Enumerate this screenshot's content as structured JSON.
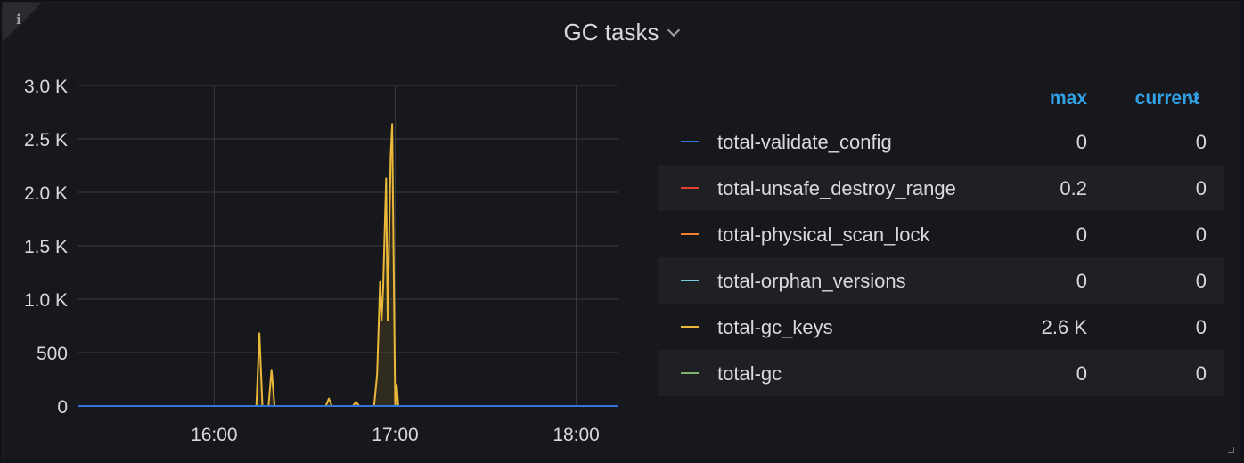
{
  "panel": {
    "title": "GC tasks",
    "info_icon": "info-icon",
    "title_menu_icon": "chevron-down-icon"
  },
  "legend": {
    "header_max": "max",
    "header_current": "current",
    "rows": [
      {
        "name": "total-validate_config",
        "max": "0",
        "current": "0",
        "color": "#3274d9"
      },
      {
        "name": "total-unsafe_destroy_range",
        "max": "0.2",
        "current": "0",
        "color": "#e0402f"
      },
      {
        "name": "total-physical_scan_lock",
        "max": "0",
        "current": "0",
        "color": "#f2812f"
      },
      {
        "name": "total-orphan_versions",
        "max": "0",
        "current": "0",
        "color": "#73cfe0"
      },
      {
        "name": "total-gc_keys",
        "max": "2.6 K",
        "current": "0",
        "color": "#eab839"
      },
      {
        "name": "total-gc",
        "max": "0",
        "current": "0",
        "color": "#7eb26d"
      }
    ]
  },
  "chart_data": {
    "type": "line",
    "ylim": [
      0,
      3000
    ],
    "y_ticks": [
      {
        "value": 0,
        "label": "0"
      },
      {
        "value": 500,
        "label": "500"
      },
      {
        "value": 1000,
        "label": "1.0 K"
      },
      {
        "value": 1500,
        "label": "1.5 K"
      },
      {
        "value": 2000,
        "label": "2.0 K"
      },
      {
        "value": 2500,
        "label": "2.5 K"
      },
      {
        "value": 3000,
        "label": "3.0 K"
      }
    ],
    "x_range_minutes": [
      915,
      1094
    ],
    "x_ticks": [
      {
        "minute": 960,
        "label": "16:00"
      },
      {
        "minute": 1020,
        "label": "17:00"
      },
      {
        "minute": 1080,
        "label": "18:00"
      }
    ],
    "grid": true,
    "series": [
      {
        "name": "total-gc_keys",
        "color": "#eab839",
        "fill": true,
        "points": [
          [
            915,
            0
          ],
          [
            974,
            0
          ],
          [
            975,
            680
          ],
          [
            976,
            0
          ],
          [
            978,
            0
          ],
          [
            979,
            340
          ],
          [
            980,
            0
          ],
          [
            997,
            0
          ],
          [
            998,
            70
          ],
          [
            999,
            0
          ],
          [
            1006,
            0
          ],
          [
            1007,
            40
          ],
          [
            1008,
            0
          ],
          [
            1013,
            0
          ],
          [
            1014,
            300
          ],
          [
            1015,
            1160
          ],
          [
            1015.5,
            800
          ],
          [
            1016,
            1100
          ],
          [
            1017,
            2130
          ],
          [
            1017.5,
            800
          ],
          [
            1018.5,
            2340
          ],
          [
            1019,
            2640
          ],
          [
            1020,
            0
          ],
          [
            1020.5,
            200
          ],
          [
            1021,
            0
          ],
          [
            1094,
            0
          ]
        ]
      },
      {
        "name": "total-validate_config",
        "color": "#3274d9",
        "fill": false,
        "points": [
          [
            915,
            0
          ],
          [
            1094,
            0
          ]
        ]
      }
    ]
  }
}
